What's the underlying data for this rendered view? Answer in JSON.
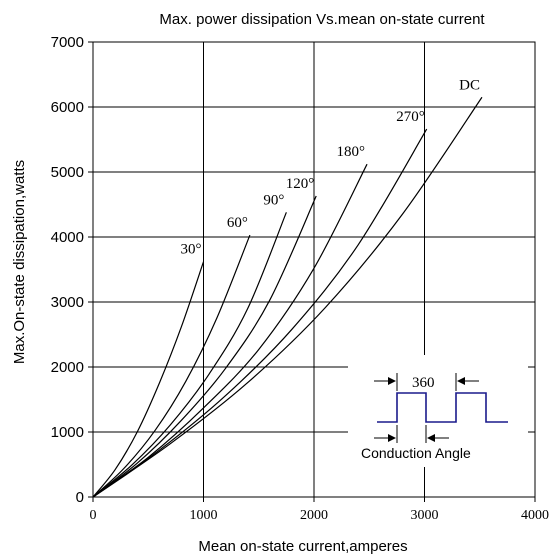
{
  "chart_data": {
    "type": "line",
    "title": "Max. power dissipation Vs.mean on-state current",
    "xlabel": "Mean on-state current,amperes",
    "ylabel": "Max.On-state dissipation,watts",
    "xlim": [
      0,
      4000
    ],
    "ylim": [
      0,
      7000
    ],
    "x_ticks": [
      "0",
      "1000",
      "2000",
      "3000",
      "4000"
    ],
    "y_ticks": [
      "0",
      "1000",
      "2000",
      "3000",
      "4000",
      "5000",
      "6000",
      "7000"
    ],
    "grid": true,
    "series": [
      {
        "name": "30°",
        "x": [
          0,
          200,
          400,
          600,
          800,
          1000
        ],
        "y": [
          0,
          420,
          1000,
          1750,
          2620,
          3620
        ]
      },
      {
        "name": "60°",
        "x": [
          0,
          280,
          560,
          840,
          1120,
          1420
        ],
        "y": [
          0,
          440,
          1020,
          1780,
          2750,
          4030
        ]
      },
      {
        "name": "90°",
        "x": [
          0,
          350,
          700,
          1050,
          1400,
          1750
        ],
        "y": [
          0,
          490,
          1110,
          1890,
          2900,
          4380
        ]
      },
      {
        "name": "120°",
        "x": [
          0,
          400,
          800,
          1200,
          1600,
          2020
        ],
        "y": [
          0,
          520,
          1180,
          1980,
          3030,
          4630
        ]
      },
      {
        "name": "180°",
        "x": [
          0,
          500,
          1000,
          1500,
          2000,
          2480
        ],
        "y": [
          0,
          610,
          1370,
          2270,
          3520,
          5120
        ]
      },
      {
        "name": "270°",
        "x": [
          0,
          600,
          1200,
          1800,
          2400,
          3020
        ],
        "y": [
          0,
          720,
          1560,
          2580,
          3880,
          5660
        ]
      },
      {
        "name": "DC",
        "x": [
          0,
          700,
          1400,
          2100,
          2800,
          3520
        ],
        "y": [
          0,
          820,
          1760,
          2910,
          4350,
          6150
        ]
      }
    ]
  },
  "inset": {
    "period_label": "360",
    "conduction_label": "Conduction  Angle",
    "line_color": "#1a1a8c"
  }
}
